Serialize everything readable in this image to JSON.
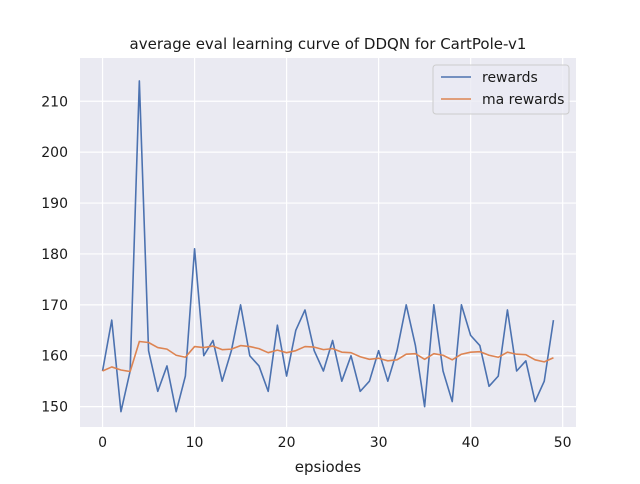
{
  "chart_data": {
    "type": "line",
    "title": "average eval learning curve of DDQN for CartPole-v1",
    "xlabel": "epsiodes",
    "ylabel": "",
    "xlim": [
      -2.45,
      51.45
    ],
    "ylim": [
      146,
      218.5
    ],
    "xticks": [
      0,
      10,
      20,
      30,
      40,
      50
    ],
    "yticks": [
      150,
      160,
      170,
      180,
      190,
      200,
      210
    ],
    "grid": true,
    "background_color": "#eaeaf2",
    "legend_position": "top-right",
    "x": [
      0,
      1,
      2,
      3,
      4,
      5,
      6,
      7,
      8,
      9,
      10,
      11,
      12,
      13,
      14,
      15,
      16,
      17,
      18,
      19,
      20,
      21,
      22,
      23,
      24,
      25,
      26,
      27,
      28,
      29,
      30,
      31,
      32,
      33,
      34,
      35,
      36,
      37,
      38,
      39,
      40,
      41,
      42,
      43,
      44,
      45,
      46,
      47,
      48,
      49
    ],
    "series": [
      {
        "name": "rewards",
        "color": "#4c72b0",
        "values": [
          157,
          167,
          149,
          157,
          214,
          161,
          153,
          158,
          149,
          156,
          181,
          160,
          163,
          155,
          161,
          170,
          160,
          158,
          153,
          166,
          156,
          165,
          169,
          161,
          157,
          163,
          155,
          160,
          153,
          155,
          161,
          155,
          161,
          170,
          162,
          150,
          170,
          157,
          151,
          170,
          164,
          162,
          154,
          156,
          169,
          157,
          159,
          151,
          155,
          167
        ]
      },
      {
        "name": "ma rewards",
        "color": "#dd8452",
        "values": [
          157,
          157.8,
          157.2,
          156.9,
          162.8,
          162.6,
          161.6,
          161.3,
          160.1,
          159.7,
          161.8,
          161.6,
          161.9,
          161.2,
          161.3,
          162,
          161.8,
          161.4,
          160.6,
          161.1,
          160.6,
          161,
          161.8,
          161.7,
          161.2,
          161.4,
          160.7,
          160.6,
          159.8,
          159.3,
          159.5,
          159,
          159.2,
          160.3,
          160.4,
          159.3,
          160.4,
          160.1,
          159.2,
          160.3,
          160.7,
          160.8,
          160.1,
          159.7,
          160.7,
          160.3,
          160.2,
          159.2,
          158.8,
          159.6
        ]
      }
    ]
  }
}
